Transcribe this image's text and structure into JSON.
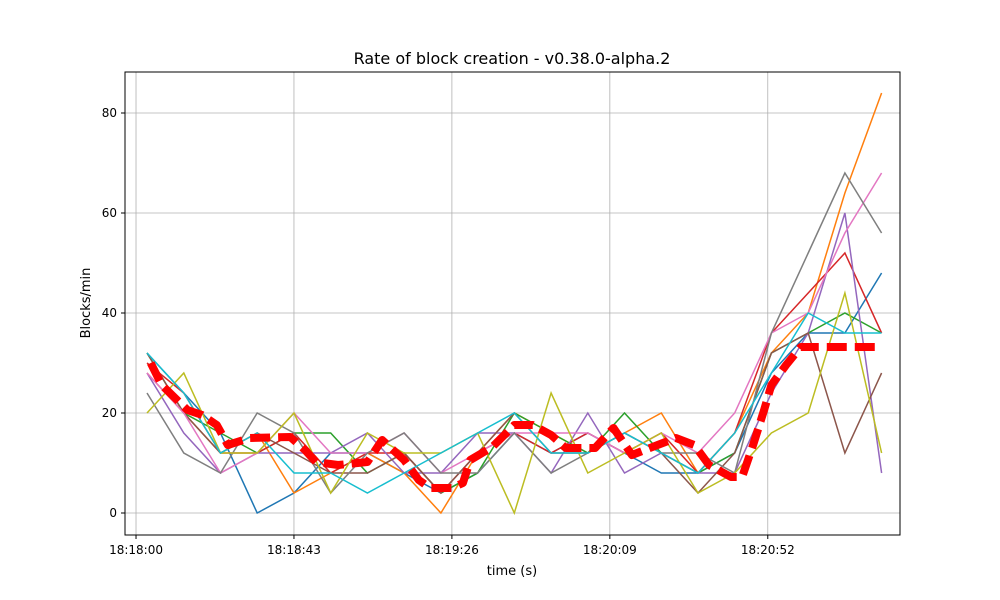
{
  "chart_data": {
    "type": "line",
    "title": "Rate of block creation  -  v0.38.0-alpha.2",
    "xlabel": "time (s)",
    "ylabel": "Blocks/min",
    "ylim": [
      -4.4,
      88.2
    ],
    "xlim": [
      "18:17:57",
      "18:21:28"
    ],
    "grid": true,
    "x_ticks": [
      "18:18:00",
      "18:18:43",
      "18:19:26",
      "18:20:09",
      "18:20:52"
    ],
    "y_ticks": [
      0,
      20,
      40,
      60,
      80
    ],
    "x": [
      "18:18:03",
      "18:18:13",
      "18:18:23",
      "18:18:33",
      "18:18:43",
      "18:18:53",
      "18:19:03",
      "18:19:13",
      "18:19:23",
      "18:19:33",
      "18:19:43",
      "18:19:53",
      "18:20:03",
      "18:20:13",
      "18:20:23",
      "18:20:33",
      "18:20:43",
      "18:20:53",
      "18:21:03",
      "18:21:13",
      "18:21:23"
    ],
    "series": [
      {
        "color": "#1f77b4",
        "values": [
          32,
          24,
          16,
          0,
          4,
          12,
          12,
          8,
          4,
          8,
          16,
          12,
          16,
          12,
          8,
          8,
          12,
          28,
          36,
          36,
          48
        ]
      },
      {
        "color": "#ff7f0e",
        "values": [
          28,
          20,
          12,
          16,
          4,
          8,
          12,
          8,
          0,
          12,
          20,
          16,
          12,
          16,
          20,
          8,
          16,
          32,
          40,
          64,
          84
        ]
      },
      {
        "color": "#2ca02c",
        "values": [
          32,
          20,
          16,
          12,
          16,
          16,
          8,
          12,
          4,
          8,
          20,
          16,
          12,
          20,
          12,
          8,
          12,
          32,
          36,
          40,
          36
        ]
      },
      {
        "color": "#d62728",
        "values": [
          30,
          24,
          12,
          12,
          16,
          8,
          12,
          12,
          4,
          12,
          16,
          12,
          16,
          12,
          16,
          8,
          16,
          36,
          44,
          52,
          36
        ]
      },
      {
        "color": "#9467bd",
        "values": [
          28,
          16,
          8,
          12,
          12,
          12,
          16,
          8,
          8,
          16,
          16,
          8,
          20,
          8,
          12,
          8,
          8,
          24,
          36,
          60,
          8
        ]
      },
      {
        "color": "#8c564b",
        "values": [
          32,
          20,
          12,
          16,
          12,
          8,
          8,
          12,
          4,
          12,
          20,
          12,
          12,
          16,
          12,
          4,
          12,
          32,
          36,
          12,
          28
        ]
      },
      {
        "color": "#e377c2",
        "values": [
          28,
          20,
          8,
          12,
          20,
          12,
          12,
          16,
          8,
          12,
          16,
          16,
          16,
          12,
          16,
          12,
          20,
          36,
          40,
          56,
          68
        ]
      },
      {
        "color": "#7f7f7f",
        "values": [
          24,
          12,
          8,
          20,
          16,
          4,
          12,
          16,
          8,
          8,
          16,
          8,
          12,
          16,
          12,
          12,
          8,
          36,
          52,
          68,
          56
        ]
      },
      {
        "color": "#bcbd22",
        "values": [
          20,
          28,
          12,
          12,
          20,
          4,
          16,
          12,
          12,
          16,
          0,
          24,
          8,
          12,
          16,
          4,
          8,
          16,
          20,
          44,
          12
        ]
      },
      {
        "color": "#17becf",
        "values": [
          32,
          24,
          12,
          16,
          8,
          8,
          4,
          8,
          12,
          16,
          20,
          12,
          12,
          16,
          12,
          8,
          16,
          28,
          40,
          36,
          36
        ]
      }
    ],
    "mean_line": {
      "color": "#ff0000",
      "style": "dashed",
      "x": [
        "18:18:04",
        "18:18:07",
        "18:18:14",
        "18:18:18",
        "18:18:22",
        "18:18:25",
        "18:18:31",
        "18:18:42",
        "18:18:46",
        "18:18:49",
        "18:18:55",
        "18:19:03",
        "18:19:07",
        "18:19:13",
        "18:19:17",
        "18:19:20",
        "18:19:26",
        "18:19:29",
        "18:19:31",
        "18:19:37",
        "18:19:43",
        "18:19:48",
        "18:19:53",
        "18:19:57",
        "18:20:05",
        "18:20:10",
        "18:20:15",
        "18:20:22",
        "18:20:27",
        "18:20:32",
        "18:20:36",
        "18:20:42",
        "18:20:45",
        "18:20:48",
        "18:20:51",
        "18:20:53",
        "18:20:57",
        "18:21:01",
        "18:21:23"
      ],
      "values": [
        30,
        25.6,
        20.6,
        19.6,
        17.6,
        13.6,
        15,
        15.2,
        12.6,
        10.2,
        9.6,
        10.2,
        14.6,
        10.6,
        6.6,
        5,
        5,
        6,
        10.6,
        13.2,
        17.6,
        17.6,
        15.6,
        13,
        13,
        17,
        11.6,
        13.6,
        15,
        13.6,
        9.6,
        7.2,
        7.2,
        13.6,
        20.6,
        25.6,
        29.6,
        33.2,
        33.2
      ]
    }
  }
}
